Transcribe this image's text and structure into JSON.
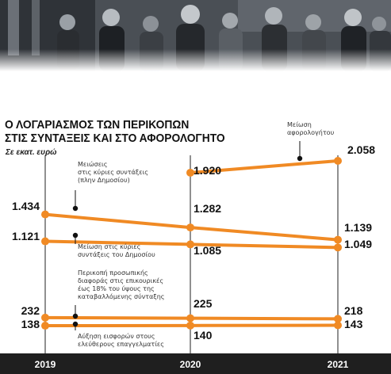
{
  "header": {
    "title_line1": "Ο ΛΟΓΑΡΙΑΣΜΟΣ ΤΩΝ ΠΕΡΙΚΟΠΩΝ",
    "title_line2": "ΣΤΙΣ ΣΥΝΤΑΞΕΙΣ ΚΑΙ ΣΤΟ ΑΦΟΡΟΛΟΓΗΤΟ",
    "subtitle": "Σε εκατ. ευρώ"
  },
  "annotations": {
    "afor": [
      "Μείωση",
      "αφορολογήτου"
    ],
    "main_private": [
      "Μειώσεις",
      "στις κύριες συντάξεις",
      "(πλην Δημοσίου)"
    ],
    "main_public": [
      "Μείωση στις κύριες",
      "συντάξεις του Δημοσίου"
    ],
    "personal": [
      "Περικοπή προσωπικής",
      "διαφοράς στις επικουρικές",
      "έως 18% του ύψους της",
      "καταβαλλόμενης σύνταξης"
    ],
    "contrib": [
      "Αύξηση εισφορών στους",
      "ελεύθερους επαγγελματίες"
    ]
  },
  "colors": {
    "line": "#f08a24",
    "axis": "#222222",
    "bar": "#1f1f1f"
  },
  "chart_data": {
    "type": "line",
    "title": "Ο ΛΟΓΑΡΙΑΣΜΟΣ ΤΩΝ ΠΕΡΙΚΟΠΩΝ ΣΤΙΣ ΣΥΝΤΑΞΕΙΣ ΚΑΙ ΣΤΟ ΑΦΟΡΟΛΟΓΗΤΟ",
    "subtitle": "Σε εκατ. ευρώ",
    "x": [
      "2019",
      "2020",
      "2021"
    ],
    "series": [
      {
        "key": "afor",
        "values": [
          null,
          1920,
          2058
        ],
        "labels": [
          null,
          "1.920",
          "2.058"
        ]
      },
      {
        "key": "main_private",
        "values": [
          1434,
          1282,
          1139
        ],
        "labels": [
          "1.434",
          "1.282",
          "1.139"
        ]
      },
      {
        "key": "main_public",
        "values": [
          1121,
          1085,
          1049
        ],
        "labels": [
          "1.121",
          "1.085",
          "1.049"
        ]
      },
      {
        "key": "personal",
        "values": [
          232,
          225,
          218
        ],
        "labels": [
          "232",
          "225",
          "218"
        ]
      },
      {
        "key": "contrib",
        "values": [
          138,
          140,
          143
        ],
        "labels": [
          "138",
          "140",
          "143"
        ]
      }
    ],
    "grid": false,
    "legend": "none"
  }
}
